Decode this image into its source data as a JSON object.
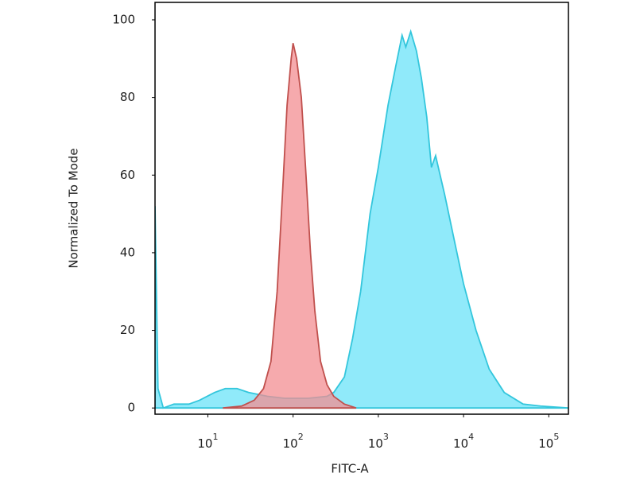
{
  "chart_data": {
    "type": "area",
    "xlabel": "FITC-A",
    "ylabel": "Normalized To Mode",
    "xscale": "log",
    "xlim": [
      2.4,
      170000
    ],
    "ylim": [
      -1.6,
      104.5
    ],
    "xticks": [
      {
        "value": 10,
        "label": "10",
        "exponent": "1"
      },
      {
        "value": 100,
        "label": "10",
        "exponent": "2"
      },
      {
        "value": 1000,
        "label": "10",
        "exponent": "3"
      },
      {
        "value": 10000,
        "label": "10",
        "exponent": "4"
      },
      {
        "value": 100000,
        "label": "10",
        "exponent": "5"
      }
    ],
    "yticks": [
      0,
      20,
      40,
      60,
      80,
      100
    ],
    "grid": false,
    "series": [
      {
        "color": "#33c6dc",
        "fill": "#8ae9fa",
        "x": [
          2.4,
          2.6,
          3,
          4,
          6,
          8,
          12,
          16,
          22,
          30,
          50,
          80,
          150,
          250,
          300,
          400,
          500,
          620,
          800,
          1000,
          1300,
          1600,
          1900,
          2100,
          2400,
          2800,
          3200,
          3700,
          4200,
          4700,
          6000,
          8000,
          10000,
          14000,
          20000,
          30000,
          50000,
          80000,
          170000
        ],
        "values": [
          52,
          5,
          0,
          1,
          1,
          2,
          4,
          5,
          5,
          4,
          3,
          2.5,
          2.5,
          3,
          4,
          8,
          18,
          30,
          50,
          62,
          78,
          88,
          96,
          93,
          97,
          92,
          85,
          75,
          62,
          65,
          55,
          42,
          32,
          20,
          10,
          4,
          1,
          0.5,
          0
        ]
      },
      {
        "color": "#c0504d",
        "fill": "#f38e92",
        "x": [
          15,
          25,
          35,
          45,
          55,
          65,
          75,
          85,
          95,
          100,
          110,
          125,
          140,
          160,
          180,
          210,
          250,
          300,
          400,
          550
        ],
        "values": [
          0,
          0.5,
          2,
          5,
          12,
          30,
          55,
          78,
          90,
          94,
          90,
          80,
          62,
          40,
          25,
          12,
          6,
          3,
          1,
          0
        ]
      }
    ]
  }
}
